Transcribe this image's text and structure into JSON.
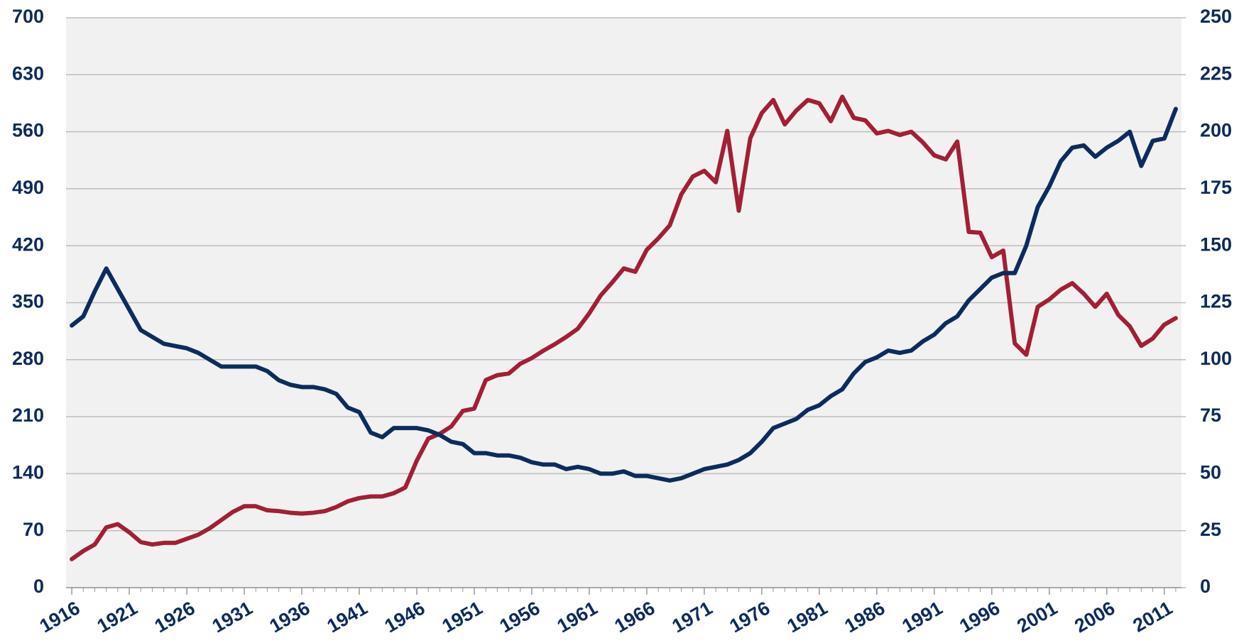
{
  "chart_data": {
    "type": "line",
    "x": [
      1916,
      1917,
      1918,
      1919,
      1920,
      1921,
      1922,
      1923,
      1924,
      1925,
      1926,
      1927,
      1928,
      1929,
      1930,
      1931,
      1932,
      1933,
      1934,
      1935,
      1936,
      1937,
      1938,
      1939,
      1940,
      1941,
      1942,
      1943,
      1944,
      1945,
      1946,
      1947,
      1948,
      1949,
      1950,
      1951,
      1952,
      1953,
      1954,
      1955,
      1956,
      1957,
      1958,
      1959,
      1960,
      1961,
      1962,
      1963,
      1964,
      1965,
      1966,
      1967,
      1968,
      1969,
      1970,
      1971,
      1972,
      1973,
      1974,
      1975,
      1976,
      1977,
      1978,
      1979,
      1980,
      1981,
      1982,
      1983,
      1984,
      1985,
      1986,
      1987,
      1988,
      1989,
      1990,
      1991,
      1992,
      1993,
      1994,
      1995,
      1996,
      1997,
      1998,
      1999,
      2000,
      2001,
      2002,
      2003,
      2004,
      2005,
      2006,
      2007,
      2008,
      2009,
      2010,
      2011,
      2012
    ],
    "series": [
      {
        "color": "#a21f35",
        "values": [
          35,
          45,
          53,
          74,
          78,
          68,
          56,
          53,
          55,
          55,
          60,
          65,
          73,
          83,
          93,
          100,
          100,
          95,
          94,
          92,
          91,
          92,
          94,
          99,
          106,
          110,
          112,
          112,
          116,
          123,
          156,
          183,
          189,
          198,
          217,
          220,
          255,
          261,
          263,
          275,
          282,
          291,
          299,
          308,
          318,
          337,
          359,
          375,
          392,
          388,
          415,
          429,
          445,
          483,
          505,
          512,
          498,
          561,
          463,
          552,
          583,
          599,
          569,
          586,
          599,
          595,
          573,
          603,
          577,
          574,
          558,
          561,
          556,
          560,
          547,
          531,
          526,
          548,
          437,
          436,
          406,
          414,
          300,
          286,
          345,
          354,
          366,
          374,
          361,
          345,
          361,
          335,
          321,
          297,
          306,
          323,
          331
        ]
      },
      {
        "color": "#0d2b5b",
        "axis": "y2",
        "values": [
          115,
          119,
          130,
          140,
          131,
          122,
          113,
          110,
          107,
          106,
          105,
          103,
          100,
          97,
          97,
          97,
          97,
          95,
          91,
          89,
          88,
          88,
          87,
          85,
          79,
          77,
          68,
          66,
          70,
          70,
          70,
          69,
          67,
          64,
          63,
          59,
          59,
          58,
          58,
          57,
          55,
          54,
          54,
          52,
          53,
          52,
          50,
          50,
          51,
          49,
          49,
          48,
          47,
          48,
          50,
          52,
          53,
          54,
          56,
          59,
          64,
          70,
          72,
          74,
          78,
          80,
          84,
          87,
          94,
          99,
          101,
          104,
          103,
          104,
          108,
          111,
          116,
          119,
          126,
          131,
          136,
          138,
          138,
          150,
          167,
          176,
          187,
          193,
          194,
          189,
          193,
          196,
          200,
          185,
          196,
          197,
          210
        ]
      }
    ],
    "xlim": [
      1915.5,
      2012.5
    ],
    "xticks": [
      1916,
      1921,
      1926,
      1931,
      1936,
      1941,
      1946,
      1951,
      1956,
      1961,
      1966,
      1971,
      1976,
      1981,
      1986,
      1991,
      1996,
      2001,
      2006,
      2011
    ],
    "ylim": [
      0,
      700
    ],
    "yticks": [
      0,
      70,
      140,
      210,
      280,
      350,
      420,
      490,
      560,
      630,
      700
    ],
    "y2lim": [
      0,
      250
    ],
    "y2ticks": [
      0,
      25,
      50,
      75,
      100,
      125,
      150,
      175,
      200,
      225,
      250
    ],
    "grid": true
  }
}
